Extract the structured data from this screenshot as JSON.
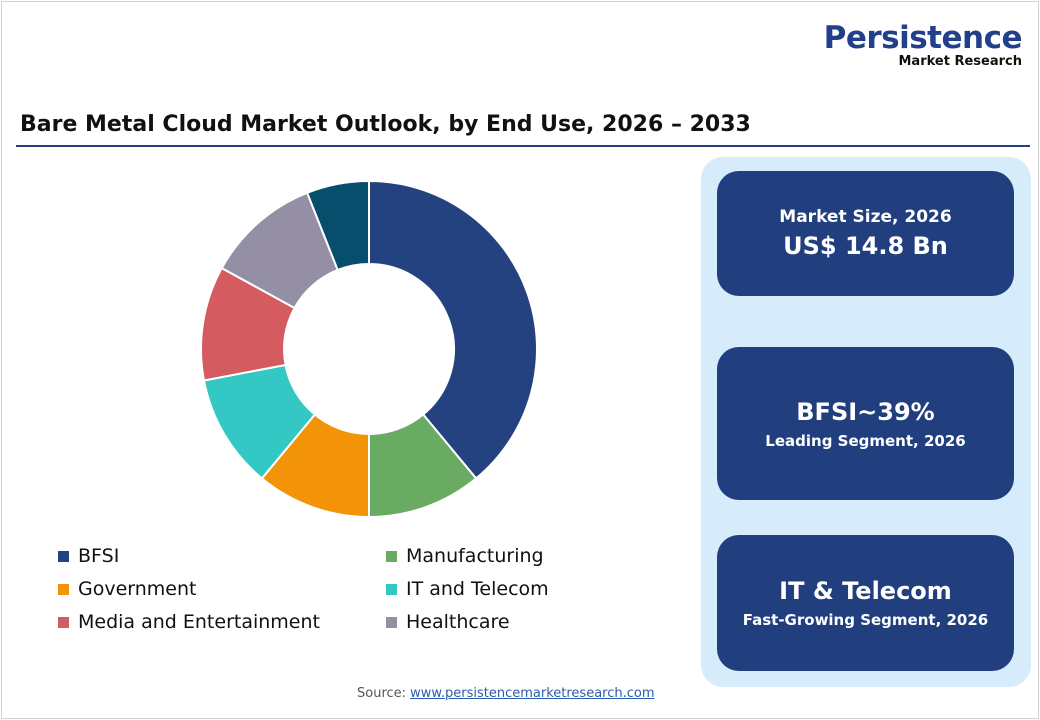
{
  "logo": {
    "line1": "Persistence",
    "line2": "Market Research"
  },
  "title": "Bare Metal Cloud Market Outlook, by End Use, 2026 – 2033",
  "chart_data": {
    "type": "pie",
    "variant": "donut",
    "title": "Bare Metal Cloud Market Outlook, by End Use, 2026 – 2033",
    "categories": [
      "BFSI",
      "Manufacturing",
      "Government",
      "IT and Telecom",
      "Media and Entertainment",
      "Healthcare",
      ""
    ],
    "values": [
      39,
      11,
      11,
      11,
      11,
      11,
      6
    ],
    "colors": [
      "#24427f",
      "#6aab63",
      "#f39408",
      "#33c8c3",
      "#d45c60",
      "#958fa5",
      "#074e6d"
    ],
    "legend_position": "bottom"
  },
  "legend": [
    {
      "label": "BFSI",
      "color": "#24427f"
    },
    {
      "label": "Manufacturing",
      "color": "#6aab63"
    },
    {
      "label": "Government",
      "color": "#f39408"
    },
    {
      "label": "IT and Telecom",
      "color": "#33c8c3"
    },
    {
      "label": "Media and Entertainment",
      "color": "#d45c60"
    },
    {
      "label": "Healthcare",
      "color": "#958fa5"
    }
  ],
  "cards": {
    "market": {
      "label": "Market Size, 2026",
      "value": "US$ 14.8 Bn"
    },
    "leading": {
      "value": "BFSI~39%",
      "label": "Leading Segment, 2026"
    },
    "fast": {
      "value": "IT & Telecom",
      "label": "Fast-Growing Segment, 2026"
    }
  },
  "source": {
    "label": "Source:",
    "link": "www.persistencemarketresearch.com"
  }
}
